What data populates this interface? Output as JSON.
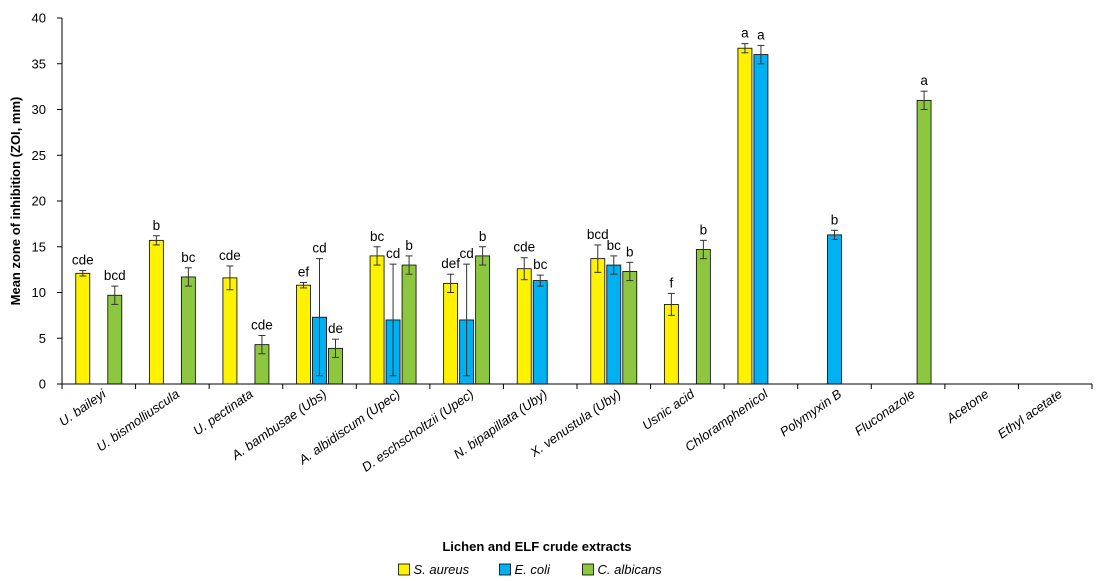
{
  "chart_data": {
    "type": "bar",
    "ylabel": "Mean zone of inhibition (ZOI, mm)",
    "xlabel": "Lichen and ELF crude extracts",
    "ylim": [
      0,
      40
    ],
    "yticks": [
      0,
      5,
      10,
      15,
      20,
      25,
      30,
      35,
      40
    ],
    "grid": false,
    "legend_position": "bottom",
    "categories": [
      "U. baileyi",
      "U. bismolliuscula",
      "U. pectinata",
      "A. bambusae (Ubs)",
      "A. albidiscum (Upec)",
      "D. eschscholtzii (Upec)",
      "N. bipapillata (Uby)",
      "X. venustula (Uby)",
      "Usnic acid",
      "Chloramphenicol",
      "Polymyxin B",
      "Fluconazole",
      "Acetone",
      "Ethyl acetate"
    ],
    "series": [
      {
        "name": "S. aureus",
        "color": "#FFF200",
        "values": [
          12.1,
          15.7,
          11.6,
          10.8,
          14.0,
          11.0,
          12.6,
          13.7,
          8.7,
          36.7,
          null,
          null,
          null,
          null
        ],
        "errors": [
          0.3,
          0.5,
          1.3,
          0.3,
          1.0,
          1.0,
          1.2,
          1.5,
          1.2,
          0.5,
          null,
          null,
          null,
          null
        ],
        "labels": [
          "cde",
          "b",
          "cde",
          "ef",
          "bc",
          "def",
          "cde",
          "bcd",
          "f",
          "a",
          "",
          "",
          "",
          ""
        ]
      },
      {
        "name": "E. coli",
        "color": "#00B0F0",
        "values": [
          null,
          null,
          null,
          7.3,
          7.0,
          7.0,
          11.3,
          13.0,
          null,
          36.0,
          16.3,
          null,
          null,
          null
        ],
        "errors": [
          null,
          null,
          null,
          6.4,
          6.1,
          6.1,
          0.6,
          1.0,
          null,
          1.0,
          0.5,
          null,
          null,
          null
        ],
        "labels": [
          "",
          "",
          "",
          "cd",
          "cd",
          "cd",
          "bc",
          "bc",
          "",
          "a",
          "b",
          "",
          "",
          ""
        ]
      },
      {
        "name": "C. albicans",
        "color": "#8DC63F",
        "values": [
          9.7,
          11.7,
          4.3,
          3.9,
          13.0,
          14.0,
          null,
          12.3,
          14.7,
          null,
          null,
          31.0,
          null,
          null
        ],
        "errors": [
          1.0,
          1.0,
          1.0,
          1.0,
          1.0,
          1.0,
          null,
          1.0,
          1.0,
          null,
          null,
          1.0,
          null,
          null
        ],
        "labels": [
          "bcd",
          "bc",
          "cde",
          "de",
          "b",
          "b",
          "",
          "b",
          "b",
          "",
          "",
          "a",
          "",
          ""
        ]
      }
    ]
  }
}
